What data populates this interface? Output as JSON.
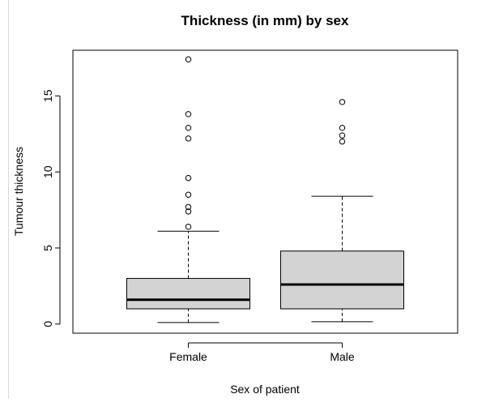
{
  "chart_data": {
    "type": "box",
    "title": "Thickness (in mm) by sex",
    "xlabel": "Sex of patient",
    "ylabel": "Tumour thickness",
    "yticks": [
      0,
      5,
      10,
      15
    ],
    "ylim": [
      -0.6,
      18.0
    ],
    "box_color": "#d3d3d3",
    "categories": [
      "Female",
      "Male"
    ],
    "boxes": [
      {
        "category": "Female",
        "whisker_low": 0.1,
        "q1": 1.0,
        "median": 1.6,
        "q3": 3.0,
        "whisker_high": 6.1,
        "outliers": [
          6.4,
          7.4,
          7.7,
          8.5,
          9.6,
          12.2,
          12.9,
          13.8,
          17.4
        ]
      },
      {
        "category": "Male",
        "whisker_low": 0.15,
        "q1": 1.0,
        "median": 2.6,
        "q3": 4.8,
        "whisker_high": 8.4,
        "outliers": [
          12.0,
          12.4,
          12.9,
          14.6
        ]
      }
    ]
  }
}
